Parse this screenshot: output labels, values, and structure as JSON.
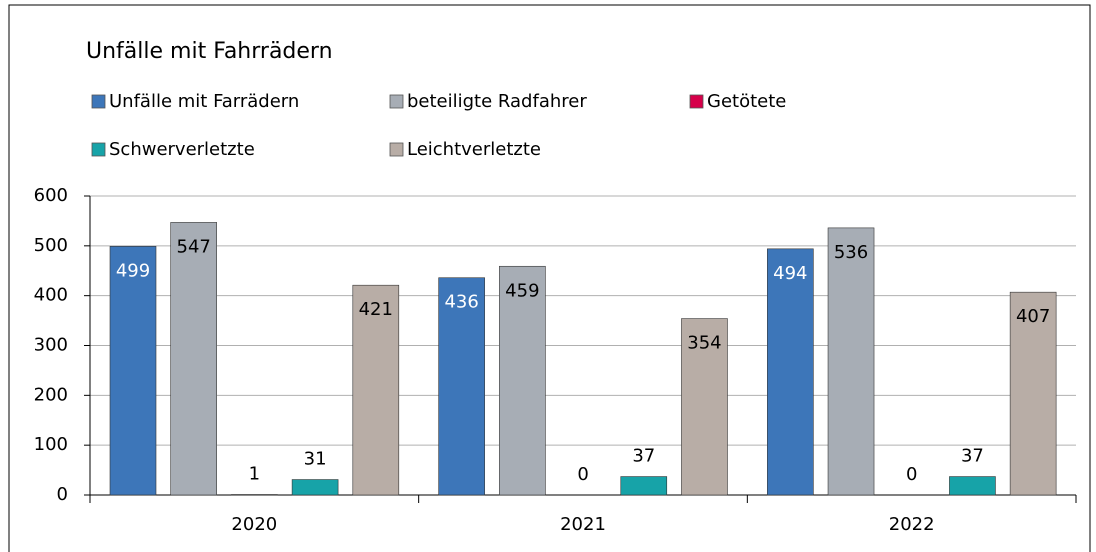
{
  "chart_data": {
    "type": "bar",
    "title": "Unfälle mit Fahrrädern",
    "categories": [
      "2020",
      "2021",
      "2022"
    ],
    "series": [
      {
        "name": "Unfälle mit Farrädern",
        "color": "#3d76b9",
        "values": [
          499,
          436,
          494
        ]
      },
      {
        "name": "beteiligte Radfahrer",
        "color": "#a7adb5",
        "values": [
          547,
          459,
          536
        ]
      },
      {
        "name": "Getötete",
        "color": "#d6004a",
        "values": [
          1,
          0,
          0
        ]
      },
      {
        "name": "Schwerverletzte",
        "color": "#17a3a8",
        "values": [
          31,
          37,
          37
        ]
      },
      {
        "name": "Leichtverletzte",
        "color": "#b8ada6",
        "values": [
          421,
          354,
          407
        ]
      }
    ],
    "ylim": [
      0,
      600
    ],
    "yticks": [
      0,
      100,
      200,
      300,
      400,
      500,
      600
    ],
    "grid": true,
    "legend": "top"
  }
}
